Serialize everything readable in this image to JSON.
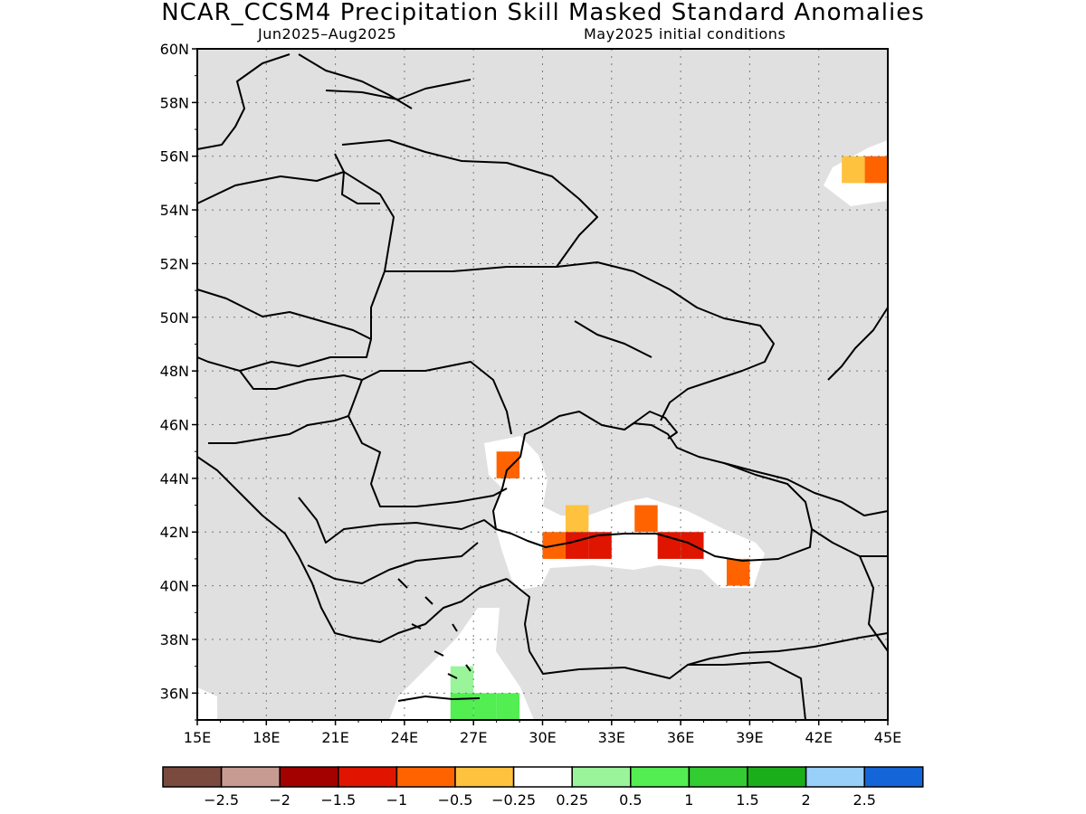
{
  "title": "NCAR_CCSM4 Precipitation Skill Masked Standard Anomalies",
  "period": "Jun2025–Aug2025",
  "init": "May2025 initial conditions",
  "map": {
    "lon_range": [
      15,
      45
    ],
    "lat_range": [
      35,
      60
    ],
    "lat_ticks": [
      "36N",
      "38N",
      "40N",
      "42N",
      "44N",
      "46N",
      "48N",
      "50N",
      "52N",
      "54N",
      "56N",
      "58N",
      "60N"
    ],
    "lon_ticks": [
      "15E",
      "18E",
      "21E",
      "24E",
      "27E",
      "30E",
      "33E",
      "36E",
      "39E",
      "42E",
      "45E"
    ],
    "mask_color": "#e0e0e0",
    "land_outline_color": "#000000",
    "grid": "dotted",
    "cells": [
      {
        "lon": 28,
        "lat": 44,
        "category": "-1"
      },
      {
        "lon": 31,
        "lat": 42,
        "category": "-0.5"
      },
      {
        "lon": 30,
        "lat": 41,
        "category": "-1"
      },
      {
        "lon": 31,
        "lat": 41,
        "category": "-1.5"
      },
      {
        "lon": 32,
        "lat": 41,
        "category": "-1.5"
      },
      {
        "lon": 34,
        "lat": 42,
        "category": "-1"
      },
      {
        "lon": 35,
        "lat": 41,
        "category": "-1.5"
      },
      {
        "lon": 36,
        "lat": 41,
        "category": "-1.5"
      },
      {
        "lon": 38,
        "lat": 40,
        "category": "-1"
      },
      {
        "lon": 43,
        "lat": 55,
        "category": "-0.5"
      },
      {
        "lon": 44,
        "lat": 55,
        "category": "-1"
      },
      {
        "lon": 26,
        "lat": 36,
        "category": "0.5"
      },
      {
        "lon": 26,
        "lat": 35,
        "category": "1"
      },
      {
        "lon": 27,
        "lat": 35,
        "category": "1"
      },
      {
        "lon": 28,
        "lat": 35,
        "category": "1"
      }
    ]
  },
  "colorbar": {
    "colors": [
      "#7a4a3f",
      "#c89b92",
      "#a30000",
      "#df1500",
      "#ff6300",
      "#ffc23e",
      "#ffffff",
      "#9af49a",
      "#52ee52",
      "#33cc33",
      "#1aaf1a",
      "#99d0f9",
      "#1466d8"
    ],
    "labels": [
      "−2.5",
      "−2",
      "−1.5",
      "−1",
      "−0.5",
      "−0.25",
      "0.25",
      "0.5",
      "1",
      "1.5",
      "2",
      "2.5"
    ]
  }
}
